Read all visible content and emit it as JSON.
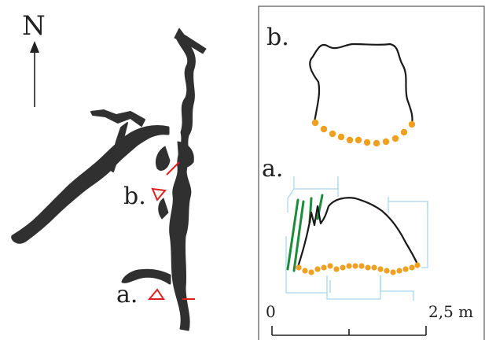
{
  "labels": {
    "north": "N",
    "section_b_map": "b.",
    "section_a_map": "a.",
    "section_b_panel": "b.",
    "section_a_panel": "a."
  },
  "scale_bar": {
    "start": "0",
    "end": "2,5 m"
  },
  "colors": {
    "cave": "#303030",
    "section_line": "#e02020",
    "floor_points": "#f0a020",
    "grid": "#a8d8ec",
    "green_marks": "#1e8c3a",
    "outline": "#1a1a1a",
    "frame": "#555555"
  }
}
